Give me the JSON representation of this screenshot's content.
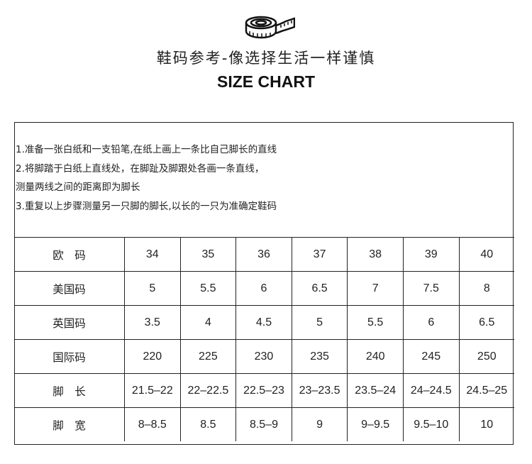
{
  "header": {
    "icon": "tape-measure-icon",
    "title_cn": "鞋码参考-像选择生活一样谨慎",
    "title_en": "SIZE CHART"
  },
  "instructions": [
    "1.准备一张白纸和一支铅笔,在纸上画上一条比自己脚长的直线",
    "2.将脚踏于白纸上直线处，在脚趾及脚跟处各画一条直线，",
    "测量两线之间的距离即为脚长",
    "3.重复以上步骤测量另一只脚的脚长,以长的一只为准确定鞋码"
  ],
  "table": {
    "rows": [
      {
        "label": "欧　码",
        "values": [
          "34",
          "35",
          "36",
          "37",
          "38",
          "39",
          "40"
        ]
      },
      {
        "label": "美国码",
        "values": [
          "5",
          "5.5",
          "6",
          "6.5",
          "7",
          "7.5",
          "8"
        ]
      },
      {
        "label": "英国码",
        "values": [
          "3.5",
          "4",
          "4.5",
          "5",
          "5.5",
          "6",
          "6.5"
        ]
      },
      {
        "label": "国际码",
        "values": [
          "220",
          "225",
          "230",
          "235",
          "240",
          "245",
          "250"
        ]
      },
      {
        "label": "脚　长",
        "values": [
          "21.5–22",
          "22–22.5",
          "22.5–23",
          "23–23.5",
          "23.5–24",
          "24–24.5",
          "24.5–25"
        ]
      },
      {
        "label": "脚　宽",
        "values": [
          "8–8.5",
          "8.5",
          "8.5–9",
          "9",
          "9–9.5",
          "9.5–10",
          "10"
        ]
      }
    ]
  }
}
